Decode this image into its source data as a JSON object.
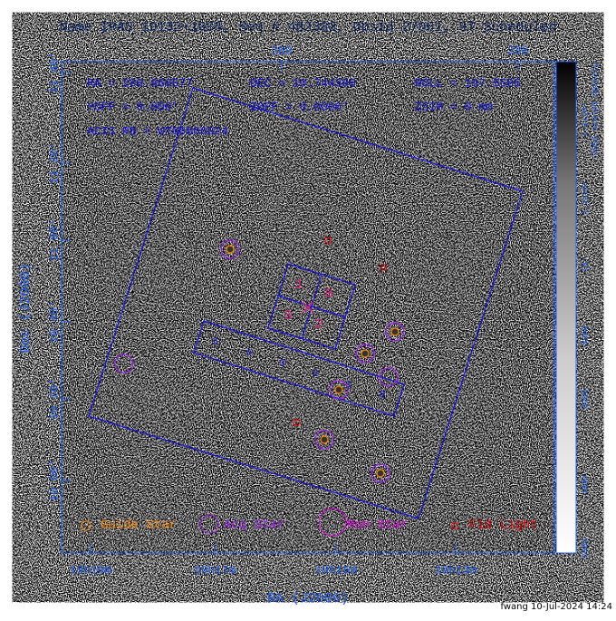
{
  "header": {
    "title": "Name IRAS 19132+1035, Seq # 402383, Obsid 27061, ST Scheduled"
  },
  "info": {
    "lines": [
      [
        "RA = 288.869577",
        "DEC = 10.744380",
        "ROLL = 197.5585"
      ],
      [
        "YOFF = 0.000'",
        "ZOFF = 0.0000'",
        "ZSIM = 0 mm"
      ],
      [
        "ACIS PB = WT00866024"
      ]
    ]
  },
  "axes": {
    "x_label": "RA (J2000)",
    "y_label": "Dec (J2000)",
    "x_ticks": [
      "19h19m",
      "19h17m",
      "19h15m",
      "19h13m"
    ],
    "x_top_ticks": [
      "289",
      "288"
    ],
    "y_ticks": [
      "11 40'",
      "11 20'",
      "11 00'",
      "10 40'",
      "10 20'",
      "10 00'"
    ]
  },
  "chips": {
    "acis_i": [
      "1",
      "0",
      "3",
      "2"
    ],
    "acis_s": [
      "5",
      "4",
      "3",
      "2",
      "1",
      "0"
    ]
  },
  "legend": [
    "Guide Star",
    "Acq Star",
    "Mon Star",
    "Fid Light"
  ],
  "colorbar": {
    "label": "POSS scaled density",
    "ticks": [
      "2000",
      "4000",
      "6000",
      "8000",
      "10⁴",
      "1.2x10⁴",
      "1.4x10⁴"
    ]
  },
  "footer": "fwang 10-Jul-2024 14:24"
}
